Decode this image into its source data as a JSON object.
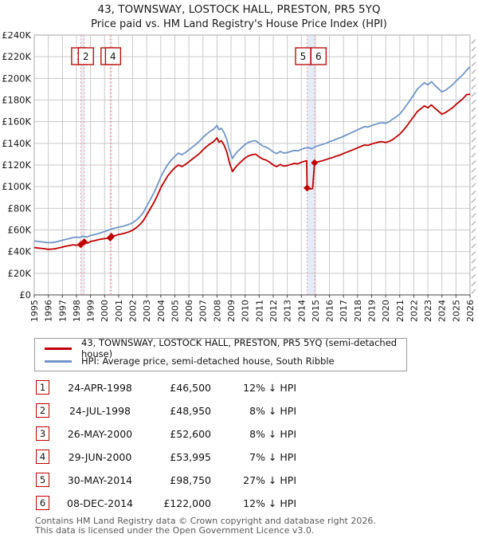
{
  "title": "43, TOWNSWAY, LOSTOCK HALL, PRESTON, PR5 5YQ",
  "subtitle": "Price paid vs. HM Land Registry's House Price Index (HPI)",
  "colors": {
    "property_line": "#c10000",
    "hpi_line": "#7195c8",
    "grid": "#c9c9c9",
    "plot_border": "#aaaaaa",
    "bottom_axis": "#444444",
    "event_dash": "#ef9a9a",
    "event_band": "#e4ecf7",
    "event_box_border": "#bb1111",
    "hatch": "#999999",
    "axis_text": "#1a1a1a"
  },
  "legend": {
    "items": [
      {
        "label": "43, TOWNSWAY, LOSTOCK HALL, PRESTON, PR5 5YQ (semi-detached house)",
        "color": "#c10000"
      },
      {
        "label": "HPI: Average price, semi-detached house, South Ribble",
        "color": "#7195c8"
      }
    ]
  },
  "chart_data": {
    "type": "line",
    "title": "43, TOWNSWAY, LOSTOCK HALL, PRESTON, PR5 5YQ — Price paid vs. HPI",
    "xlabel": "",
    "ylabel": "",
    "x_axis": {
      "tick_years": [
        1995,
        1996,
        1997,
        1998,
        1999,
        2000,
        2001,
        2002,
        2003,
        2004,
        2005,
        2006,
        2007,
        2008,
        2009,
        2010,
        2011,
        2012,
        2013,
        2014,
        2015,
        2016,
        2017,
        2018,
        2019,
        2020,
        2021,
        2022,
        2023,
        2024,
        2025,
        2026
      ]
    },
    "y_axis": {
      "tick_values_k": [
        0,
        20,
        40,
        60,
        80,
        100,
        120,
        140,
        160,
        180,
        200,
        220,
        240
      ],
      "tick_labels": [
        "£0",
        "£20K",
        "£40K",
        "£60K",
        "£80K",
        "£100K",
        "£120K",
        "£140K",
        "£160K",
        "£180K",
        "£200K",
        "£220K",
        "£240K"
      ]
    },
    "series": [
      {
        "name": "HPI: Average price, semi-detached house, South Ribble",
        "color": "#7195c8",
        "points": [
          [
            1995,
            50
          ],
          [
            1995.25,
            49.4
          ],
          [
            1995.5,
            49
          ],
          [
            1995.75,
            48.6
          ],
          [
            1996,
            48.2
          ],
          [
            1996.25,
            48.4
          ],
          [
            1996.5,
            48.8
          ],
          [
            1996.75,
            49.6
          ],
          [
            1997,
            50.5
          ],
          [
            1997.25,
            51.3
          ],
          [
            1997.5,
            52
          ],
          [
            1997.75,
            53
          ],
          [
            1998,
            53.4
          ],
          [
            1998.25,
            53.1
          ],
          [
            1998.5,
            54.3
          ],
          [
            1998.75,
            53.4
          ],
          [
            1999,
            55
          ],
          [
            1999.25,
            55.6
          ],
          [
            1999.5,
            56.4
          ],
          [
            1999.75,
            57.4
          ],
          [
            2000,
            58.5
          ],
          [
            2000.25,
            59.6
          ],
          [
            2000.5,
            61
          ],
          [
            2000.75,
            61.8
          ],
          [
            2001,
            62.6
          ],
          [
            2001.25,
            63.2
          ],
          [
            2001.5,
            64.1
          ],
          [
            2001.75,
            65.2
          ],
          [
            2002,
            66.6
          ],
          [
            2002.25,
            69
          ],
          [
            2002.5,
            72
          ],
          [
            2002.75,
            76
          ],
          [
            2003,
            82
          ],
          [
            2003.25,
            88
          ],
          [
            2003.5,
            94
          ],
          [
            2003.75,
            101
          ],
          [
            2004,
            109
          ],
          [
            2004.25,
            115
          ],
          [
            2004.5,
            120.5
          ],
          [
            2004.75,
            124.5
          ],
          [
            2005,
            128
          ],
          [
            2005.25,
            131
          ],
          [
            2005.5,
            129.5
          ],
          [
            2005.75,
            131.5
          ],
          [
            2006,
            134
          ],
          [
            2006.25,
            136.5
          ],
          [
            2006.5,
            139
          ],
          [
            2006.75,
            142
          ],
          [
            2007,
            145.5
          ],
          [
            2007.25,
            148.5
          ],
          [
            2007.5,
            151
          ],
          [
            2007.75,
            153
          ],
          [
            2008,
            156.5
          ],
          [
            2008.15,
            152.5
          ],
          [
            2008.3,
            154
          ],
          [
            2008.5,
            150
          ],
          [
            2008.7,
            143.5
          ],
          [
            2008.9,
            133
          ],
          [
            2009.1,
            126
          ],
          [
            2009.3,
            130
          ],
          [
            2009.5,
            133
          ],
          [
            2009.75,
            136
          ],
          [
            2010,
            139
          ],
          [
            2010.25,
            141
          ],
          [
            2010.5,
            142
          ],
          [
            2010.75,
            142.5
          ],
          [
            2011,
            140
          ],
          [
            2011.25,
            137.5
          ],
          [
            2011.5,
            136.5
          ],
          [
            2011.75,
            134.5
          ],
          [
            2012,
            132
          ],
          [
            2012.25,
            130.5
          ],
          [
            2012.5,
            132.5
          ],
          [
            2012.75,
            131
          ],
          [
            2013,
            131.5
          ],
          [
            2013.25,
            132.5
          ],
          [
            2013.5,
            133.5
          ],
          [
            2013.75,
            133
          ],
          [
            2014,
            134.5
          ],
          [
            2014.25,
            135.5
          ],
          [
            2014.5,
            136
          ],
          [
            2014.75,
            135
          ],
          [
            2015,
            137
          ],
          [
            2015.25,
            138
          ],
          [
            2015.5,
            139
          ],
          [
            2015.75,
            140
          ],
          [
            2016,
            141.5
          ],
          [
            2016.25,
            142.5
          ],
          [
            2016.5,
            144
          ],
          [
            2016.75,
            145
          ],
          [
            2017,
            146.5
          ],
          [
            2017.25,
            148
          ],
          [
            2017.5,
            149.5
          ],
          [
            2017.75,
            151
          ],
          [
            2018,
            152.5
          ],
          [
            2018.25,
            154
          ],
          [
            2018.5,
            155.5
          ],
          [
            2018.75,
            155
          ],
          [
            2019,
            156.5
          ],
          [
            2019.25,
            157.5
          ],
          [
            2019.5,
            158.5
          ],
          [
            2019.75,
            159
          ],
          [
            2020,
            158.5
          ],
          [
            2020.25,
            160
          ],
          [
            2020.5,
            162.5
          ],
          [
            2020.75,
            164.5
          ],
          [
            2021,
            167
          ],
          [
            2021.25,
            171
          ],
          [
            2021.5,
            175.5
          ],
          [
            2021.75,
            180
          ],
          [
            2022,
            185
          ],
          [
            2022.25,
            190
          ],
          [
            2022.5,
            193
          ],
          [
            2022.75,
            196
          ],
          [
            2023,
            194
          ],
          [
            2023.25,
            197
          ],
          [
            2023.5,
            193.5
          ],
          [
            2023.75,
            190.5
          ],
          [
            2024,
            187.5
          ],
          [
            2024.25,
            189
          ],
          [
            2024.5,
            191.5
          ],
          [
            2024.75,
            194
          ],
          [
            2025,
            197.5
          ],
          [
            2025.25,
            200.5
          ],
          [
            2025.5,
            203.5
          ],
          [
            2025.75,
            207.5
          ],
          [
            2026,
            210.5
          ]
        ]
      },
      {
        "name": "43, TOWNSWAY, LOSTOCK HALL, PRESTON, PR5 5YQ (semi-detached house)",
        "color": "#c10000",
        "points": [
          [
            1995,
            43.8
          ],
          [
            1995.25,
            43.3
          ],
          [
            1995.5,
            43
          ],
          [
            1995.75,
            42.6
          ],
          [
            1996,
            42.1
          ],
          [
            1996.25,
            42.3
          ],
          [
            1996.5,
            42.7
          ],
          [
            1996.75,
            43.4
          ],
          [
            1997,
            44.2
          ],
          [
            1997.25,
            45
          ],
          [
            1997.5,
            45.6
          ],
          [
            1997.75,
            46.3
          ],
          [
            1998,
            45.9
          ],
          [
            1998.31,
            46.5
          ],
          [
            1998.56,
            48.95
          ],
          [
            1998.8,
            47.8
          ],
          [
            1999,
            49.4
          ],
          [
            1999.25,
            50
          ],
          [
            1999.5,
            50.8
          ],
          [
            1999.75,
            51.5
          ],
          [
            2000,
            52
          ],
          [
            2000.4,
            52.6
          ],
          [
            2000.49,
            54
          ],
          [
            2000.75,
            54.8
          ],
          [
            2001,
            55.8
          ],
          [
            2001.25,
            56.4
          ],
          [
            2001.5,
            57.3
          ],
          [
            2001.75,
            58.3
          ],
          [
            2002,
            59.8
          ],
          [
            2002.25,
            62
          ],
          [
            2002.5,
            64.8
          ],
          [
            2002.75,
            68.5
          ],
          [
            2003,
            74
          ],
          [
            2003.25,
            79.5
          ],
          [
            2003.5,
            85
          ],
          [
            2003.75,
            91.5
          ],
          [
            2004,
            99
          ],
          [
            2004.25,
            104.5
          ],
          [
            2004.5,
            110
          ],
          [
            2004.75,
            114
          ],
          [
            2005,
            117.5
          ],
          [
            2005.25,
            120
          ],
          [
            2005.5,
            118.5
          ],
          [
            2005.75,
            120.5
          ],
          [
            2006,
            123
          ],
          [
            2006.25,
            125.5
          ],
          [
            2006.5,
            128
          ],
          [
            2006.75,
            130.5
          ],
          [
            2007,
            134
          ],
          [
            2007.25,
            137
          ],
          [
            2007.5,
            139.5
          ],
          [
            2007.75,
            141.5
          ],
          [
            2008,
            145
          ],
          [
            2008.15,
            141
          ],
          [
            2008.3,
            142.5
          ],
          [
            2008.5,
            138.5
          ],
          [
            2008.7,
            132
          ],
          [
            2008.9,
            121.5
          ],
          [
            2009.1,
            114
          ],
          [
            2009.3,
            117.5
          ],
          [
            2009.5,
            120.5
          ],
          [
            2009.75,
            123.5
          ],
          [
            2010,
            126.5
          ],
          [
            2010.25,
            128.5
          ],
          [
            2010.5,
            129.5
          ],
          [
            2010.75,
            130
          ],
          [
            2011,
            127.5
          ],
          [
            2011.25,
            125.5
          ],
          [
            2011.5,
            124.5
          ],
          [
            2011.75,
            122.5
          ],
          [
            2012,
            120
          ],
          [
            2012.25,
            118.5
          ],
          [
            2012.5,
            120.5
          ],
          [
            2012.75,
            119
          ],
          [
            2013,
            119.5
          ],
          [
            2013.25,
            120.5
          ],
          [
            2013.5,
            121.5
          ],
          [
            2013.75,
            121
          ],
          [
            2014,
            122.5
          ],
          [
            2014.25,
            123.5
          ],
          [
            2014.38,
            124
          ],
          [
            2014.41,
            98.75
          ],
          [
            2014.6,
            97.8
          ],
          [
            2014.8,
            98.3
          ],
          [
            2014.94,
            122
          ],
          [
            2015,
            122.3
          ],
          [
            2015.25,
            123.2
          ],
          [
            2015.5,
            124
          ],
          [
            2015.75,
            124.9
          ],
          [
            2016,
            126.1
          ],
          [
            2016.25,
            127
          ],
          [
            2016.5,
            128.3
          ],
          [
            2016.75,
            129.2
          ],
          [
            2017,
            130.6
          ],
          [
            2017.25,
            131.9
          ],
          [
            2017.5,
            133.2
          ],
          [
            2017.75,
            134.5
          ],
          [
            2018,
            135.9
          ],
          [
            2018.25,
            137.2
          ],
          [
            2018.5,
            138.5
          ],
          [
            2018.75,
            138.1
          ],
          [
            2019,
            139.4
          ],
          [
            2019.25,
            140.3
          ],
          [
            2019.5,
            141.2
          ],
          [
            2019.75,
            141.6
          ],
          [
            2020,
            140.8
          ],
          [
            2020.25,
            141.8
          ],
          [
            2020.5,
            143.5
          ],
          [
            2020.75,
            146
          ],
          [
            2021,
            148.5
          ],
          [
            2021.25,
            152
          ],
          [
            2021.5,
            156
          ],
          [
            2021.75,
            160.5
          ],
          [
            2022,
            164.8
          ],
          [
            2022.25,
            169.3
          ],
          [
            2022.5,
            172
          ],
          [
            2022.75,
            174.6
          ],
          [
            2023,
            172.8
          ],
          [
            2023.25,
            175.5
          ],
          [
            2023.5,
            172.4
          ],
          [
            2023.75,
            169.7
          ],
          [
            2024,
            167
          ],
          [
            2024.25,
            168.4
          ],
          [
            2024.5,
            170.6
          ],
          [
            2024.75,
            172.8
          ],
          [
            2025,
            175.9
          ],
          [
            2025.25,
            178.6
          ],
          [
            2025.5,
            181.3
          ],
          [
            2025.75,
            184.9
          ],
          [
            2026,
            185.4
          ]
        ]
      }
    ],
    "events": [
      {
        "n": "1",
        "x": 1998.31,
        "price_k": 46.5,
        "box_dx": -2,
        "show_box": true
      },
      {
        "n": "2",
        "x": 1998.56,
        "price_k": 48.95,
        "box_dx": 2,
        "show_box": true
      },
      {
        "n": "3",
        "x": 2000.4,
        "price_k": 52.6,
        "box_dx": -2,
        "show_box": true
      },
      {
        "n": "4",
        "x": 2000.49,
        "price_k": 53.995,
        "box_dx": 2,
        "show_box": true
      },
      {
        "n": "5",
        "x": 2014.41,
        "price_k": 98.75,
        "box_dx": -5,
        "show_box": true
      },
      {
        "n": "6",
        "x": 2014.94,
        "price_k": 122,
        "box_dx": 5,
        "show_box": true
      }
    ]
  },
  "transactions": [
    {
      "n": "1",
      "date": "24-APR-1998",
      "price": "£46,500",
      "vs_hpi": "12% ↓ HPI"
    },
    {
      "n": "2",
      "date": "24-JUL-1998",
      "price": "£48,950",
      "vs_hpi": "8% ↓ HPI"
    },
    {
      "n": "3",
      "date": "26-MAY-2000",
      "price": "£52,600",
      "vs_hpi": "8% ↓ HPI"
    },
    {
      "n": "4",
      "date": "29-JUN-2000",
      "price": "£53,995",
      "vs_hpi": "7% ↓ HPI"
    },
    {
      "n": "5",
      "date": "30-MAY-2014",
      "price": "£98,750",
      "vs_hpi": "27% ↓ HPI"
    },
    {
      "n": "6",
      "date": "08-DEC-2014",
      "price": "£122,000",
      "vs_hpi": "12% ↓ HPI"
    }
  ],
  "footer": {
    "line1": "Contains HM Land Registry data © Crown copyright and database right 2026.",
    "line2": "This data is licensed under the Open Government Licence v3.0."
  }
}
